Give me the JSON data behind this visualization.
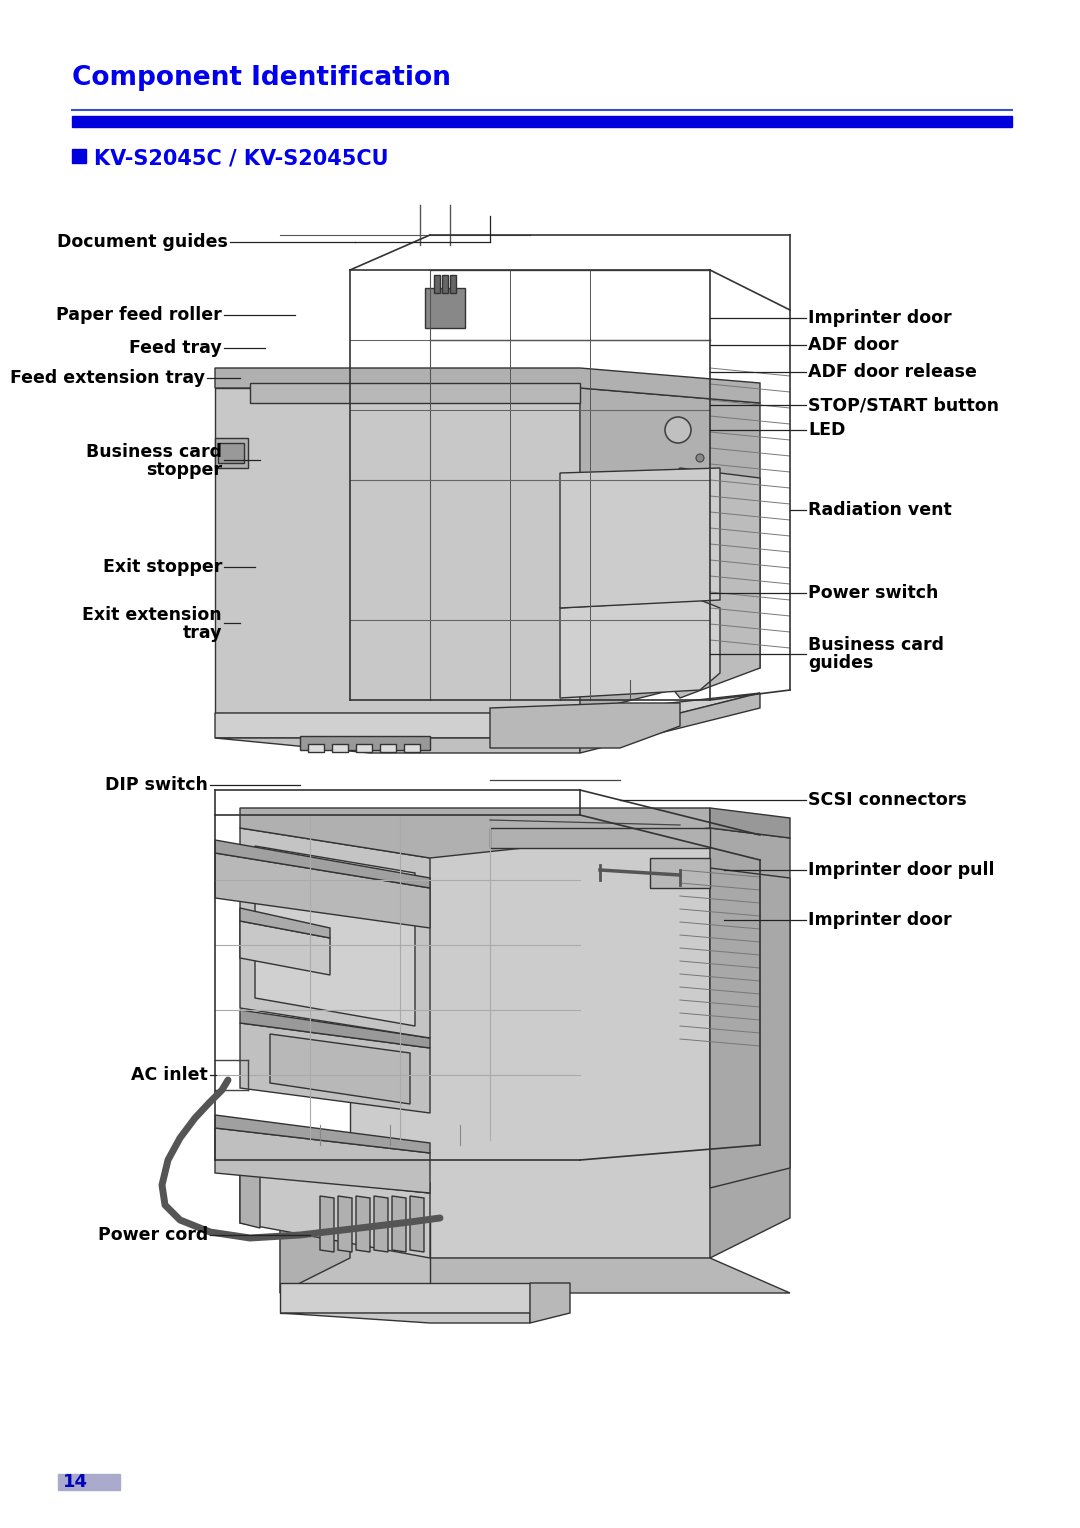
{
  "page_bg": "#ffffff",
  "title_color": "#0000ee",
  "header_title": "Component Identification",
  "subheader": "KV-S2045C / KV-S2045CU",
  "line_color": "#000000",
  "text_color": "#000000",
  "page_number": "14",
  "page_num_bg": "#aaaacc",
  "body_fill": "#c8c8c8",
  "body_edge": "#333333",
  "side_fill": "#a0a0a0",
  "top_fill": "#b8b8b8",
  "light_fill": "#d8d8d8",
  "dark_fill": "#909090"
}
